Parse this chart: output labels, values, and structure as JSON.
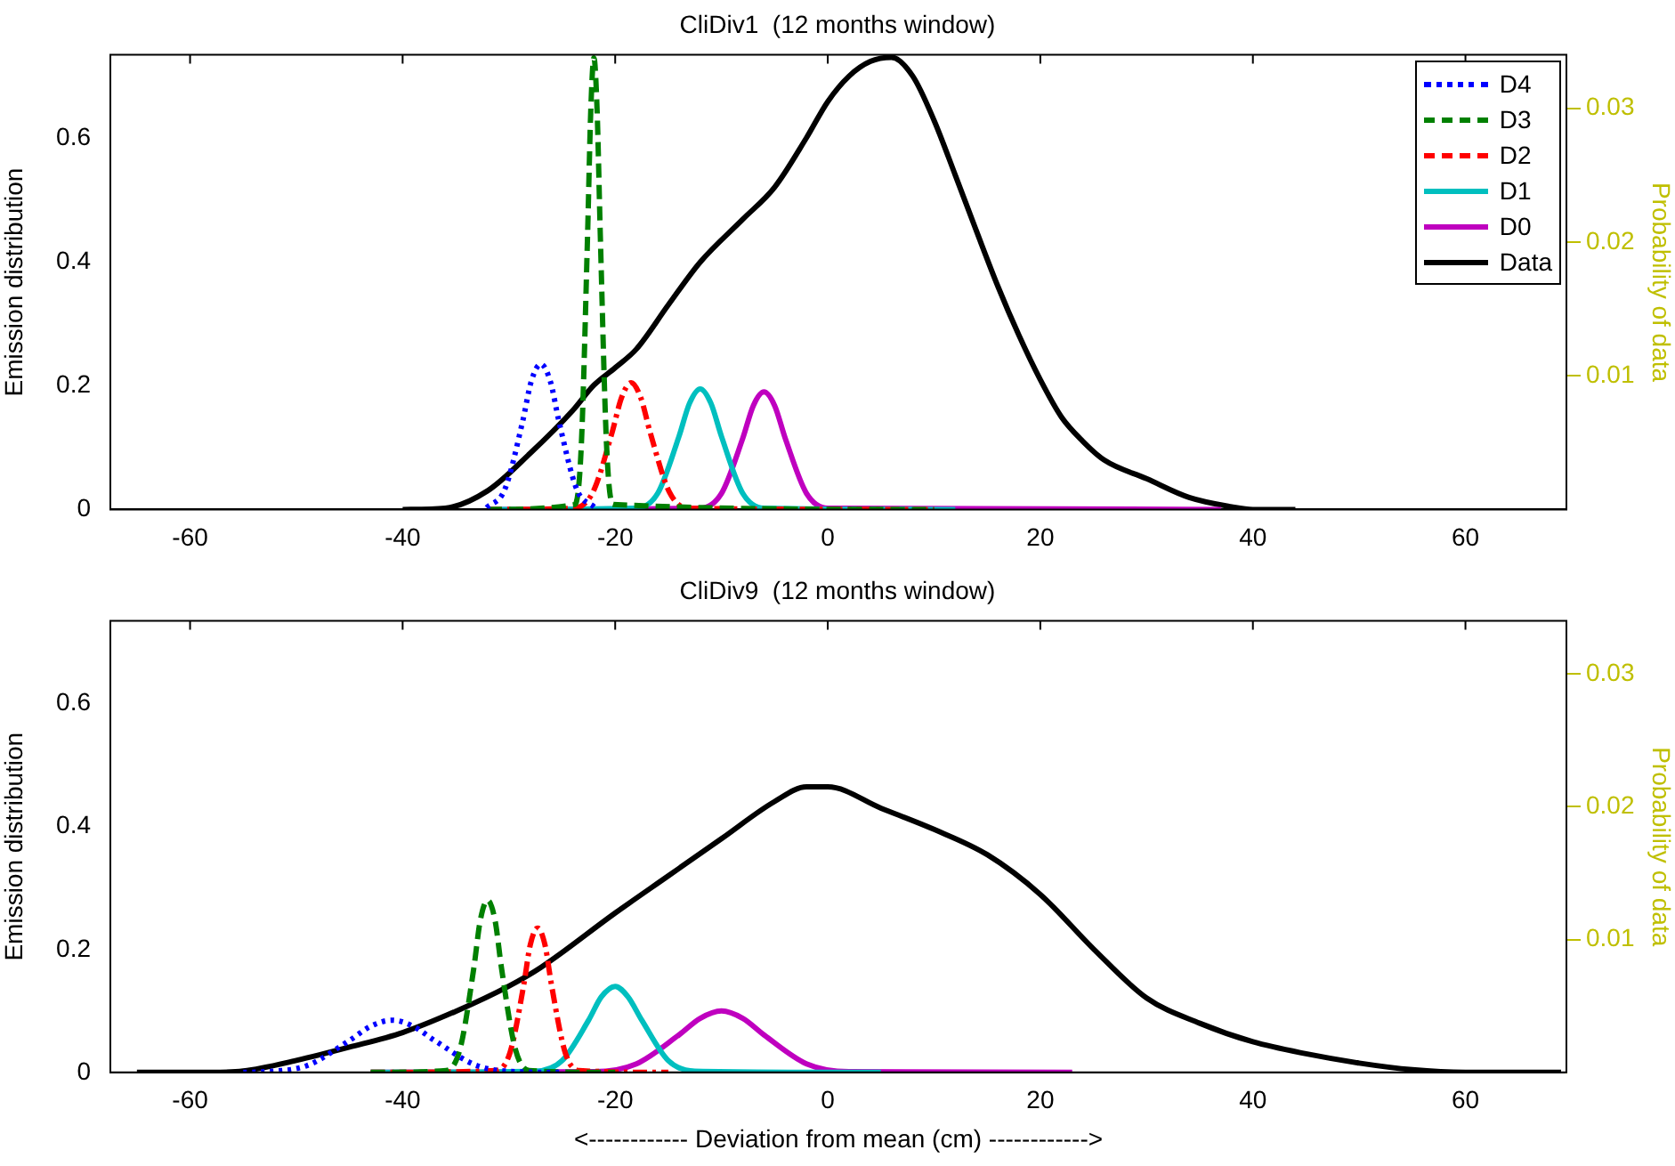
{
  "chart_data": [
    {
      "type": "line",
      "title": "CliDiv1  (12 months window)",
      "ylabel": "Emission distribution",
      "y2label": "Probability of data",
      "xlim": [
        -67.5,
        69.5
      ],
      "xticks": [
        -60,
        -40,
        -20,
        0,
        20,
        40,
        60
      ],
      "ylim": [
        0,
        0.735
      ],
      "yticks": [
        0,
        0.2,
        0.4,
        0.6
      ],
      "y2lim": [
        0,
        0.034
      ],
      "y2ticks": [
        0.01,
        0.02,
        0.03
      ],
      "grid": false,
      "legend": "top right",
      "marker": "none",
      "series": [
        {
          "name": "D4",
          "color": "#0000ff",
          "line_style": "dotted",
          "x": [
            -32.1,
            -30.4,
            -28.7,
            -27.9,
            -27,
            -26.1,
            -25.3,
            -23.6,
            -21.9
          ],
          "values": [
            0.003,
            0.032,
            0.143,
            0.207,
            0.235,
            0.207,
            0.143,
            0.032,
            0.003
          ]
        },
        {
          "name": "D3",
          "color": "#008000",
          "line_style": "dashed",
          "x": [
            -32,
            -23.8,
            -23.2,
            -22.6,
            -22.3,
            -22,
            -21.7,
            -21.4,
            -20.8,
            -20.2,
            10
          ],
          "values": [
            0,
            0.008,
            0.099,
            0.443,
            0.644,
            0.73,
            0.644,
            0.443,
            0.099,
            0.008,
            0
          ]
        },
        {
          "name": "D2",
          "color": "#ff0000",
          "line_style": "dashdot",
          "x": [
            -32,
            -23.9,
            -22.1,
            -20.3,
            -19.4,
            -18.5,
            -17.6,
            -16.7,
            -14.9,
            -13.1,
            10
          ],
          "values": [
            0,
            0.002,
            0.028,
            0.124,
            0.181,
            0.205,
            0.181,
            0.124,
            0.028,
            0.002,
            0
          ]
        },
        {
          "name": "D1",
          "color": "#00bfbf",
          "line_style": "solid",
          "x": [
            -32,
            -18,
            -16,
            -14,
            -13,
            -12,
            -11,
            -10,
            -8,
            -6,
            12
          ],
          "values": [
            0,
            0.002,
            0.026,
            0.118,
            0.172,
            0.195,
            0.172,
            0.118,
            0.026,
            0.002,
            0
          ]
        },
        {
          "name": "D0",
          "color": "#bf00bf",
          "line_style": "solid",
          "x": [
            -32,
            -12,
            -10,
            -8,
            -7,
            -6,
            -5,
            -4,
            -2,
            0,
            37
          ],
          "values": [
            0,
            0.002,
            0.026,
            0.115,
            0.168,
            0.19,
            0.168,
            0.115,
            0.026,
            0.002,
            0
          ]
        },
        {
          "name": "Data",
          "color": "#000000",
          "line_style": "solid",
          "axis": "y2",
          "x": [
            -40,
            -36,
            -32,
            -28,
            -24,
            -22,
            -20,
            -18,
            -15,
            -12,
            -8,
            -5,
            -2,
            0,
            2,
            4,
            6,
            8,
            10,
            12,
            14,
            16,
            18,
            20,
            22,
            24,
            26,
            30,
            34,
            38,
            40,
            44
          ],
          "values": [
            0,
            0.0001,
            0.0014,
            0.0042,
            0.0074,
            0.0093,
            0.0106,
            0.012,
            0.0153,
            0.0185,
            0.0217,
            0.0241,
            0.0278,
            0.0305,
            0.0324,
            0.0335,
            0.0338,
            0.0324,
            0.0291,
            0.025,
            0.0208,
            0.0167,
            0.013,
            0.0097,
            0.0069,
            0.0051,
            0.0037,
            0.0023,
            0.0009,
            0.0002,
            0,
            0
          ]
        }
      ]
    },
    {
      "type": "line",
      "title": "CliDiv9  (12 months window)",
      "xlabel": "<------------ Deviation from mean (cm) ------------>",
      "ylabel": "Emission distribution",
      "y2label": "Probability of data",
      "xlim": [
        -67.5,
        69.5
      ],
      "xticks": [
        -60,
        -40,
        -20,
        0,
        20,
        40,
        60
      ],
      "ylim": [
        0,
        0.735
      ],
      "yticks": [
        0,
        0.2,
        0.4,
        0.6
      ],
      "y2lim": [
        0,
        0.034
      ],
      "y2ticks": [
        0.01,
        0.02,
        0.03
      ],
      "grid": false,
      "legend": false,
      "marker": "none",
      "series": [
        {
          "color": "#0000ff",
          "line_style": "dotted",
          "x": [
            -55,
            -53,
            -49,
            -45,
            -43,
            -41,
            -39,
            -37,
            -33,
            -29,
            -25
          ],
          "values": [
            0,
            0.001,
            0.011,
            0.052,
            0.075,
            0.085,
            0.075,
            0.052,
            0.011,
            0.001,
            0
          ]
        },
        {
          "color": "#008000",
          "line_style": "dashed",
          "x": [
            -43,
            -35.9,
            -34.6,
            -33.3,
            -32.7,
            -32,
            -31.3,
            -30.7,
            -29.4,
            -28.1,
            -20
          ],
          "values": [
            0,
            0.003,
            0.038,
            0.17,
            0.247,
            0.28,
            0.247,
            0.17,
            0.038,
            0.003,
            0
          ]
        },
        {
          "color": "#ff0000",
          "line_style": "dashdot",
          "x": [
            -43,
            -31.2,
            -29.9,
            -28.6,
            -28,
            -27.3,
            -26.6,
            -26,
            -24.7,
            -23.4,
            -15
          ],
          "values": [
            0,
            0.003,
            0.032,
            0.143,
            0.207,
            0.235,
            0.207,
            0.143,
            0.032,
            0.003,
            0
          ]
        },
        {
          "color": "#00bfbf",
          "line_style": "solid",
          "x": [
            -43,
            -27.5,
            -25,
            -22.5,
            -21.3,
            -20,
            -18.8,
            -17.5,
            -15,
            -12.5,
            5
          ],
          "values": [
            0,
            0.002,
            0.019,
            0.085,
            0.123,
            0.14,
            0.123,
            0.085,
            0.019,
            0.002,
            0
          ]
        },
        {
          "color": "#bf00bf",
          "line_style": "solid",
          "x": [
            -43,
            -22,
            -18,
            -14,
            -12,
            -10,
            -8,
            -6,
            -2,
            2,
            23
          ],
          "values": [
            0,
            0.001,
            0.014,
            0.061,
            0.088,
            0.1,
            0.088,
            0.061,
            0.014,
            0.001,
            0
          ]
        },
        {
          "color": "#000000",
          "line_style": "solid",
          "axis": "y2",
          "x": [
            -65,
            -58,
            -55,
            -50,
            -45,
            -40,
            -35,
            -30,
            -27,
            -20,
            -15,
            -10,
            -5,
            -2,
            0,
            5,
            10,
            15,
            20,
            25,
            30,
            35,
            40,
            45,
            50,
            55,
            60,
            69
          ],
          "values": [
            0,
            0,
            0.0001,
            0.0009,
            0.0019,
            0.003,
            0.0046,
            0.0065,
            0.0079,
            0.012,
            0.0148,
            0.0176,
            0.0204,
            0.0215,
            0.0215,
            0.0199,
            0.0183,
            0.0164,
            0.0134,
            0.0093,
            0.0056,
            0.0037,
            0.0023,
            0.0014,
            0.0007,
            0.0002,
            0,
            0
          ]
        }
      ]
    }
  ]
}
